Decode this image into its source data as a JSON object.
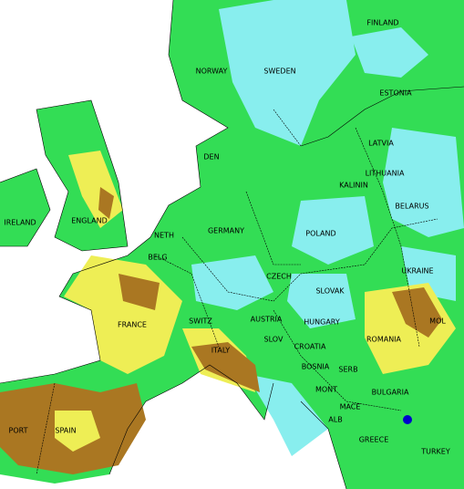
{
  "labels": [
    "FINLAND",
    "NORWAY",
    "SWEDEN",
    "ESTONIA",
    "LATVIA",
    "DEN",
    "LITHUANIA",
    "KALININ",
    "IRELAND",
    "ENGLAND",
    "BELARUS",
    "POLAND",
    "GERMANY",
    "NETH",
    "BELG",
    "UKRAINE",
    "CZECH",
    "SLOVAK",
    "FRANCE",
    "SWITZ",
    "AUSTRIA",
    "HUNGARY",
    "MOL",
    "ROMANIA",
    "SLOV",
    "CROATIA",
    "ITALY",
    "BOSNIA",
    "SERB",
    "BULGARIA",
    "MONT",
    "ALB",
    "MACE",
    "PORT",
    "SPAIN",
    "GREECE",
    "TURKEY"
  ]
}
